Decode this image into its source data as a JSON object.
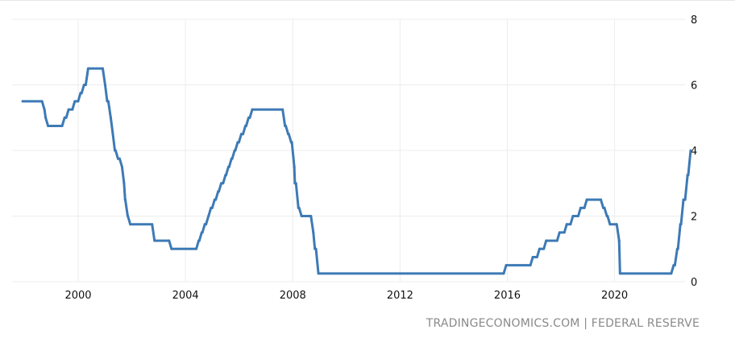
{
  "chart_data": {
    "type": "line",
    "title": "",
    "xlabel": "",
    "ylabel": "",
    "xlim": [
      "1998-01-01",
      "2022-11-15"
    ],
    "ylim": [
      0,
      8
    ],
    "y_ticks": [
      "0",
      "2",
      "4",
      "6",
      "8"
    ],
    "x_ticks": [
      "2000",
      "2004",
      "2008",
      "2012",
      "2016",
      "2020"
    ],
    "y_axis_position": "right",
    "grid": true,
    "line_color": "#3d7ab5",
    "series": [
      {
        "points": [
          [
            "1998-01-01",
            5.5
          ],
          [
            "1998-09-29",
            5.25
          ],
          [
            "1998-10-15",
            5.0
          ],
          [
            "1998-11-17",
            4.75
          ],
          [
            "1999-06-30",
            5.0
          ],
          [
            "1999-08-24",
            5.25
          ],
          [
            "1999-11-16",
            5.5
          ],
          [
            "2000-02-02",
            5.75
          ],
          [
            "2000-03-21",
            6.0
          ],
          [
            "2000-05-16",
            6.5
          ],
          [
            "2001-01-03",
            6.0
          ],
          [
            "2001-01-31",
            5.5
          ],
          [
            "2001-03-20",
            5.0
          ],
          [
            "2001-04-18",
            4.5
          ],
          [
            "2001-05-15",
            4.0
          ],
          [
            "2001-06-27",
            3.75
          ],
          [
            "2001-08-21",
            3.5
          ],
          [
            "2001-09-17",
            3.0
          ],
          [
            "2001-10-02",
            2.5
          ],
          [
            "2001-11-06",
            2.0
          ],
          [
            "2001-12-11",
            1.75
          ],
          [
            "2002-11-06",
            1.25
          ],
          [
            "2003-06-25",
            1.0
          ],
          [
            "2004-06-30",
            1.25
          ],
          [
            "2004-08-10",
            1.5
          ],
          [
            "2004-09-21",
            1.75
          ],
          [
            "2004-11-10",
            2.0
          ],
          [
            "2004-12-14",
            2.25
          ],
          [
            "2005-02-02",
            2.5
          ],
          [
            "2005-03-22",
            2.75
          ],
          [
            "2005-05-03",
            3.0
          ],
          [
            "2005-06-30",
            3.25
          ],
          [
            "2005-08-09",
            3.5
          ],
          [
            "2005-09-20",
            3.75
          ],
          [
            "2005-11-01",
            4.0
          ],
          [
            "2005-12-13",
            4.25
          ],
          [
            "2006-01-31",
            4.5
          ],
          [
            "2006-03-28",
            4.75
          ],
          [
            "2006-05-10",
            5.0
          ],
          [
            "2006-06-29",
            5.25
          ],
          [
            "2007-09-18",
            4.75
          ],
          [
            "2007-10-31",
            4.5
          ],
          [
            "2007-12-11",
            4.25
          ],
          [
            "2008-01-22",
            3.5
          ],
          [
            "2008-01-30",
            3.0
          ],
          [
            "2008-03-18",
            2.25
          ],
          [
            "2008-04-30",
            2.0
          ],
          [
            "2008-10-08",
            1.5
          ],
          [
            "2008-10-29",
            1.0
          ],
          [
            "2008-12-16",
            0.25
          ],
          [
            "2015-12-16",
            0.5
          ],
          [
            "2016-12-14",
            0.75
          ],
          [
            "2017-03-15",
            1.0
          ],
          [
            "2017-06-14",
            1.25
          ],
          [
            "2017-12-13",
            1.5
          ],
          [
            "2018-03-21",
            1.75
          ],
          [
            "2018-06-13",
            2.0
          ],
          [
            "2018-09-26",
            2.25
          ],
          [
            "2018-12-19",
            2.5
          ],
          [
            "2019-07-31",
            2.25
          ],
          [
            "2019-09-18",
            2.0
          ],
          [
            "2019-10-30",
            1.75
          ],
          [
            "2020-03-03",
            1.25
          ],
          [
            "2020-03-15",
            0.25
          ],
          [
            "2022-03-16",
            0.5
          ],
          [
            "2022-05-04",
            1.0
          ],
          [
            "2022-06-15",
            1.75
          ],
          [
            "2022-07-27",
            2.5
          ],
          [
            "2022-09-21",
            3.25
          ],
          [
            "2022-11-02",
            4.0
          ]
        ]
      }
    ]
  },
  "watermark": "TRADINGECONOMICS.COM | FEDERAL RESERVE"
}
